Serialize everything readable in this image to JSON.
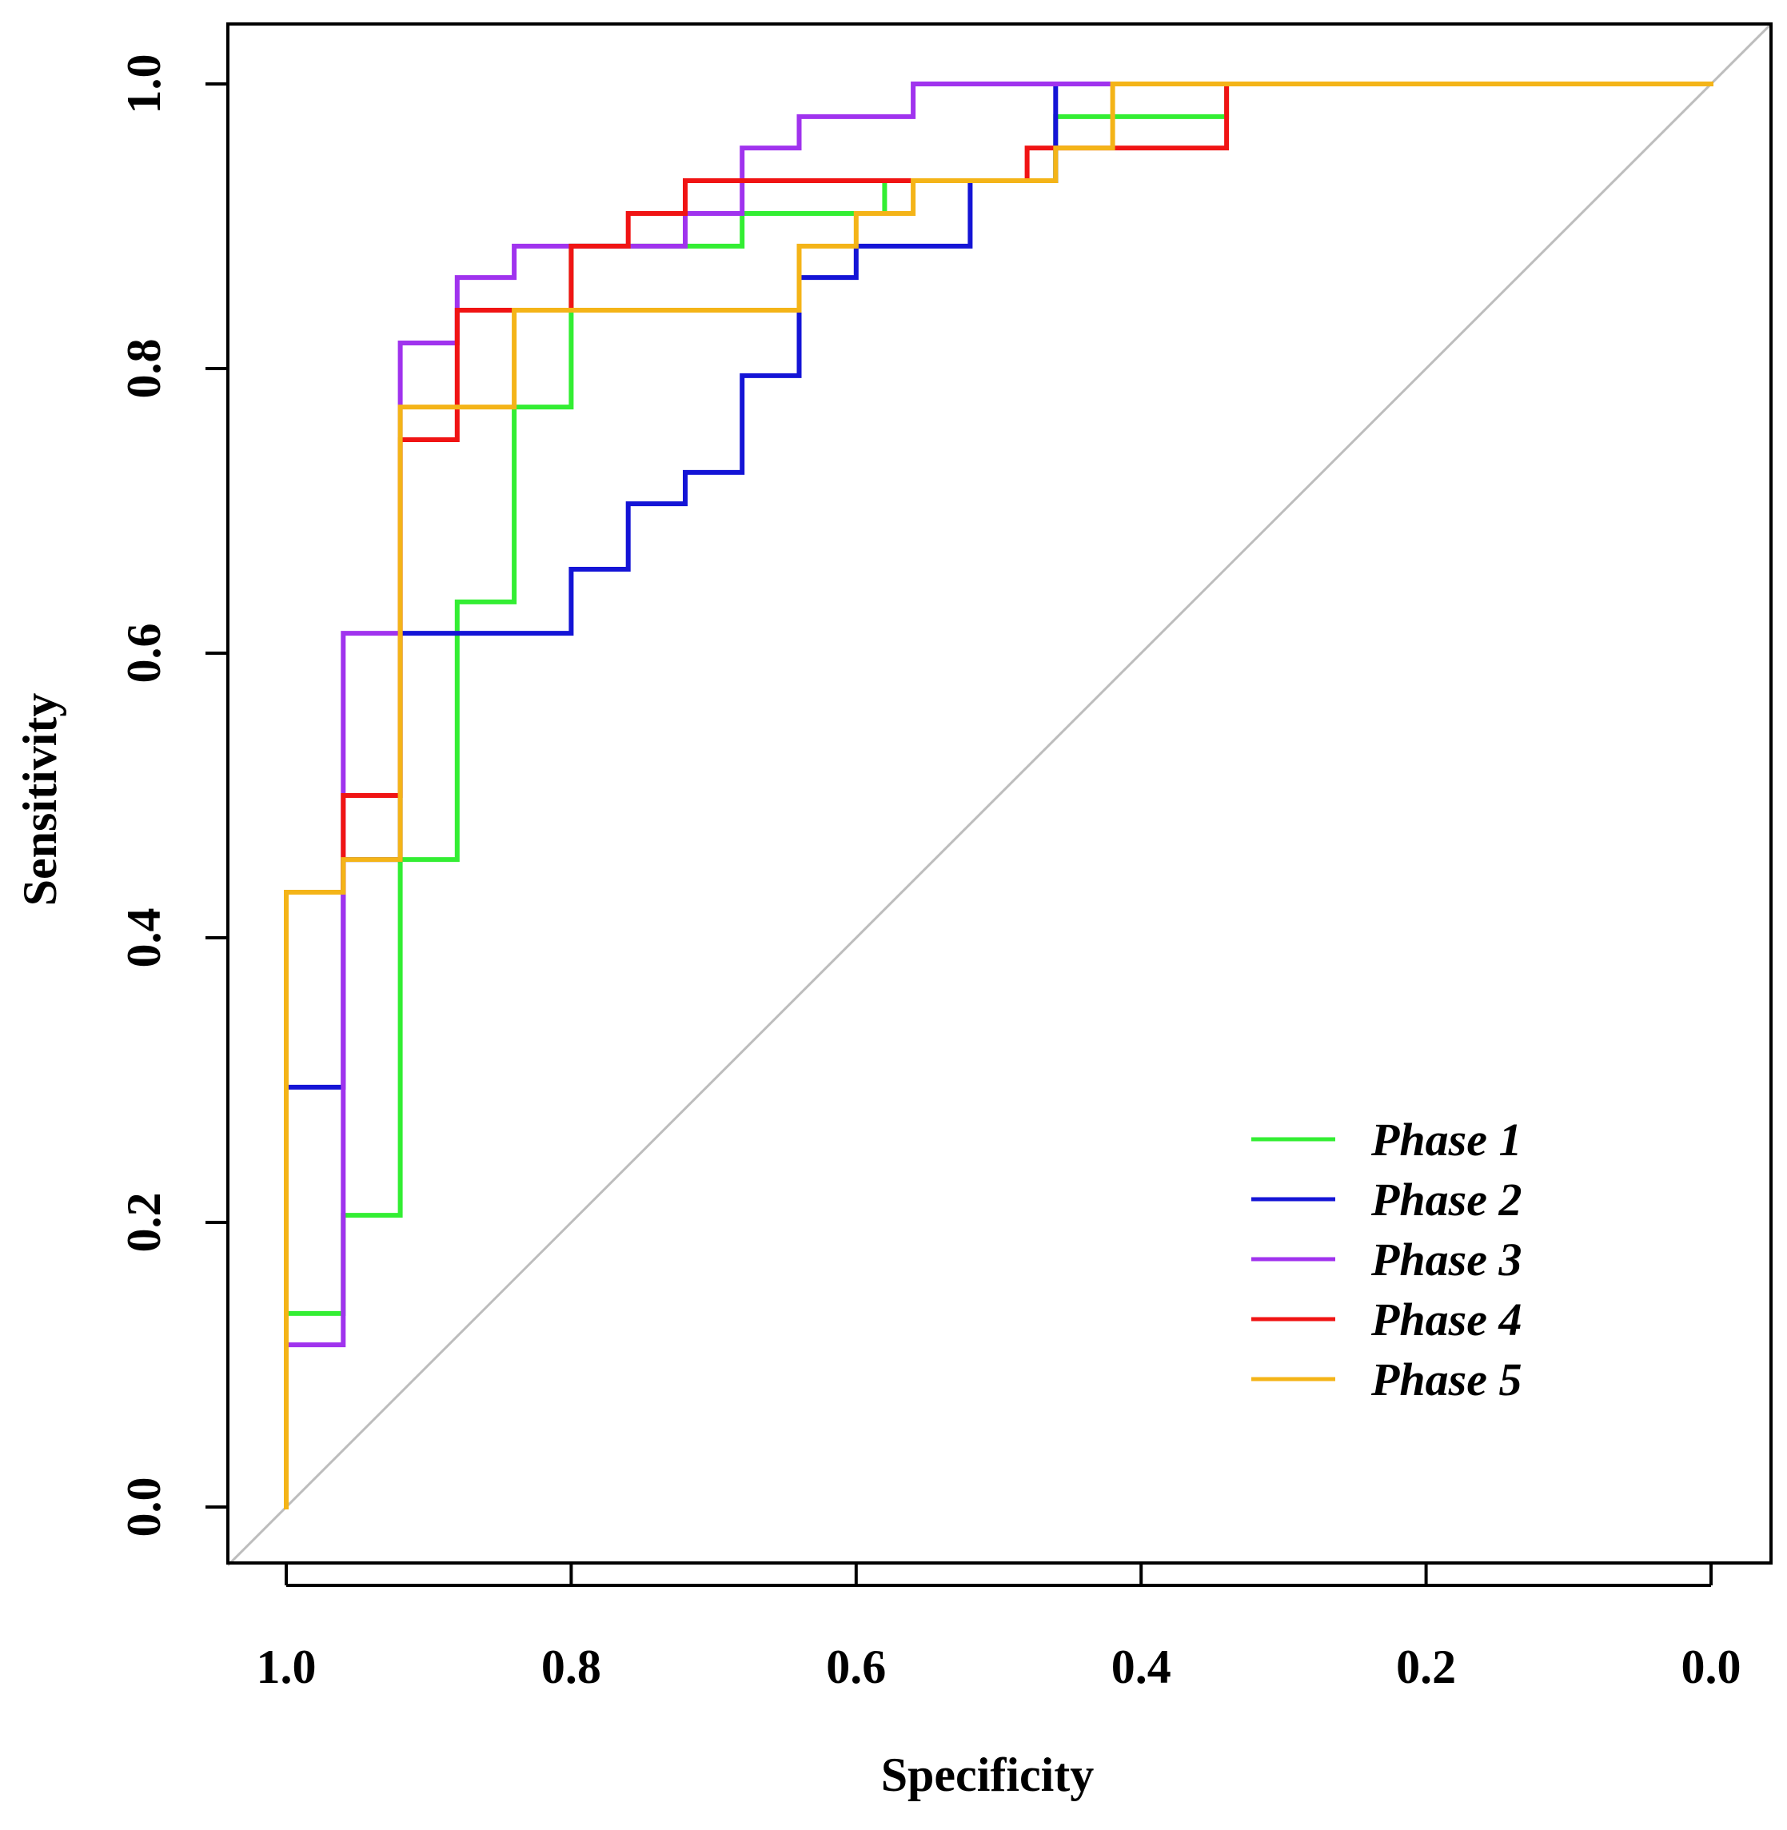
{
  "chart_data": {
    "type": "line",
    "title": "",
    "xlabel": "Specificity",
    "ylabel": "Sensitivity",
    "x_reversed": true,
    "xlim": [
      1.0,
      0.0
    ],
    "ylim": [
      0.0,
      1.0
    ],
    "xticks": [
      "1.0",
      "0.8",
      "0.6",
      "0.4",
      "0.2",
      "0.0"
    ],
    "yticks": [
      "0.0",
      "0.2",
      "0.4",
      "0.6",
      "0.8",
      "1.0"
    ],
    "grid": false,
    "legend_position": "bottom-right",
    "reference_line": {
      "from": [
        1.0,
        0.0
      ],
      "to": [
        0.0,
        1.0
      ],
      "color": "#bdbdbd"
    },
    "series": [
      {
        "name": "Phase 1",
        "color": "#33ee33",
        "points": [
          [
            1.0,
            0.0
          ],
          [
            1.0,
            0.136
          ],
          [
            0.96,
            0.136
          ],
          [
            0.96,
            0.205
          ],
          [
            0.92,
            0.205
          ],
          [
            0.92,
            0.455
          ],
          [
            0.88,
            0.455
          ],
          [
            0.88,
            0.636
          ],
          [
            0.84,
            0.636
          ],
          [
            0.84,
            0.773
          ],
          [
            0.8,
            0.773
          ],
          [
            0.8,
            0.886
          ],
          [
            0.72,
            0.886
          ],
          [
            0.72,
            0.886
          ],
          [
            0.68,
            0.886
          ],
          [
            0.68,
            0.909
          ],
          [
            0.6,
            0.909
          ],
          [
            0.6,
            0.909
          ],
          [
            0.58,
            0.909
          ],
          [
            0.58,
            0.932
          ],
          [
            0.46,
            0.932
          ],
          [
            0.46,
            0.977
          ],
          [
            0.34,
            0.977
          ],
          [
            0.34,
            1.0
          ],
          [
            0.0,
            1.0
          ]
        ]
      },
      {
        "name": "Phase 2",
        "color": "#1414d6",
        "points": [
          [
            1.0,
            0.0
          ],
          [
            1.0,
            0.295
          ],
          [
            0.96,
            0.295
          ],
          [
            0.96,
            0.455
          ],
          [
            0.92,
            0.455
          ],
          [
            0.92,
            0.614
          ],
          [
            0.8,
            0.614
          ],
          [
            0.8,
            0.659
          ],
          [
            0.76,
            0.659
          ],
          [
            0.76,
            0.705
          ],
          [
            0.72,
            0.705
          ],
          [
            0.72,
            0.727
          ],
          [
            0.68,
            0.727
          ],
          [
            0.68,
            0.795
          ],
          [
            0.64,
            0.795
          ],
          [
            0.64,
            0.864
          ],
          [
            0.6,
            0.864
          ],
          [
            0.6,
            0.886
          ],
          [
            0.52,
            0.886
          ],
          [
            0.52,
            0.932
          ],
          [
            0.46,
            0.932
          ],
          [
            0.46,
            1.0
          ],
          [
            0.0,
            1.0
          ]
        ]
      },
      {
        "name": "Phase 3",
        "color": "#a033ee",
        "points": [
          [
            1.0,
            0.0
          ],
          [
            1.0,
            0.114
          ],
          [
            0.96,
            0.114
          ],
          [
            0.96,
            0.614
          ],
          [
            0.92,
            0.614
          ],
          [
            0.92,
            0.818
          ],
          [
            0.88,
            0.818
          ],
          [
            0.88,
            0.864
          ],
          [
            0.84,
            0.864
          ],
          [
            0.84,
            0.886
          ],
          [
            0.72,
            0.886
          ],
          [
            0.72,
            0.909
          ],
          [
            0.68,
            0.909
          ],
          [
            0.68,
            0.955
          ],
          [
            0.64,
            0.955
          ],
          [
            0.64,
            0.977
          ],
          [
            0.56,
            0.977
          ],
          [
            0.56,
            1.0
          ],
          [
            0.0,
            1.0
          ]
        ]
      },
      {
        "name": "Phase 4",
        "color": "#f01414",
        "points": [
          [
            1.0,
            0.0
          ],
          [
            1.0,
            0.432
          ],
          [
            0.96,
            0.432
          ],
          [
            0.96,
            0.5
          ],
          [
            0.92,
            0.5
          ],
          [
            0.92,
            0.75
          ],
          [
            0.88,
            0.75
          ],
          [
            0.88,
            0.841
          ],
          [
            0.8,
            0.841
          ],
          [
            0.8,
            0.886
          ],
          [
            0.76,
            0.886
          ],
          [
            0.76,
            0.909
          ],
          [
            0.72,
            0.909
          ],
          [
            0.72,
            0.932
          ],
          [
            0.48,
            0.932
          ],
          [
            0.48,
            0.955
          ],
          [
            0.34,
            0.955
          ],
          [
            0.34,
            1.0
          ],
          [
            0.0,
            1.0
          ]
        ]
      },
      {
        "name": "Phase 5",
        "color": "#f4b418",
        "points": [
          [
            1.0,
            0.0
          ],
          [
            1.0,
            0.432
          ],
          [
            0.96,
            0.432
          ],
          [
            0.96,
            0.455
          ],
          [
            0.92,
            0.455
          ],
          [
            0.92,
            0.773
          ],
          [
            0.84,
            0.773
          ],
          [
            0.84,
            0.841
          ],
          [
            0.64,
            0.841
          ],
          [
            0.64,
            0.886
          ],
          [
            0.6,
            0.886
          ],
          [
            0.6,
            0.909
          ],
          [
            0.56,
            0.909
          ],
          [
            0.56,
            0.932
          ],
          [
            0.46,
            0.932
          ],
          [
            0.46,
            0.955
          ],
          [
            0.42,
            0.955
          ],
          [
            0.42,
            1.0
          ],
          [
            0.0,
            1.0
          ]
        ]
      }
    ]
  }
}
